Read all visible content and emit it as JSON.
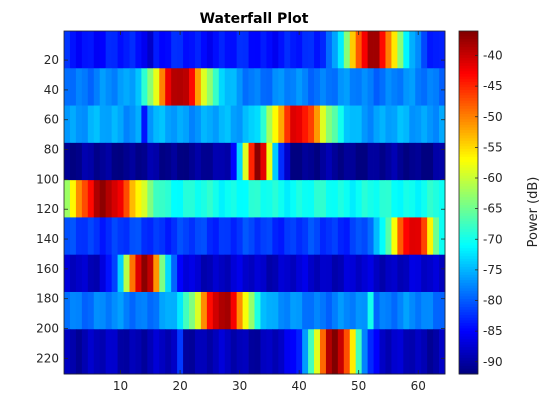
{
  "chart_data": {
    "type": "heatmap",
    "title": "Waterfall Plot",
    "xlabel": "",
    "ylabel": "",
    "xlim": [
      0.5,
      64.5
    ],
    "ylim": [
      0.5,
      230.5
    ],
    "y_reversed": true,
    "x_ticks": [
      10,
      20,
      30,
      40,
      50,
      60
    ],
    "x_tick_labels": [
      "10",
      "20",
      "30",
      "40",
      "50",
      "60"
    ],
    "y_ticks": [
      20,
      40,
      60,
      80,
      100,
      120,
      140,
      160,
      180,
      200,
      220
    ],
    "y_tick_labels": [
      "20",
      "40",
      "60",
      "80",
      "100",
      "120",
      "140",
      "160",
      "180",
      "200",
      "220"
    ],
    "colormap": "jet",
    "colorbar": {
      "label": "Power (dB)",
      "clim": [
        -92,
        -36
      ],
      "ticks": [
        -40,
        -45,
        -50,
        -55,
        -60,
        -65,
        -70,
        -75,
        -80,
        -85,
        -90
      ],
      "tick_labels": [
        "-40",
        "-45",
        "-50",
        "-55",
        "-60",
        "-65",
        "-70",
        "-75",
        "-80",
        "-85",
        "-90"
      ]
    },
    "columns": 64,
    "bands": [
      {
        "y_start": 1,
        "y_end": 25,
        "base_db": -84,
        "peak_bin": 52.5,
        "peak_db": -38,
        "width_bins": 3.5,
        "notch_bins": [
          15
        ],
        "notch_db": -88
      },
      {
        "y_start": 26,
        "y_end": 50,
        "base_db": -78,
        "peak_bin": 20,
        "peak_db": -38,
        "width_bins": 3.5,
        "notch_bins": [],
        "notch_db": -80
      },
      {
        "y_start": 51,
        "y_end": 75,
        "base_db": -76,
        "peak_bin": 40,
        "peak_db": -41,
        "width_bins": 3.5,
        "notch_bins": [
          14
        ],
        "notch_db": -84
      },
      {
        "y_start": 76,
        "y_end": 100,
        "base_db": -91,
        "peak_bin": 33,
        "peak_db": -37,
        "width_bins": 2,
        "notch_bins": [],
        "notch_db": -90
      },
      {
        "y_start": 101,
        "y_end": 125,
        "base_db": -70,
        "peak_bin": 7.5,
        "peak_db": -37,
        "width_bins": 4,
        "notch_bins": [],
        "notch_db": -72
      },
      {
        "y_start": 126,
        "y_end": 150,
        "base_db": -82,
        "peak_bin": 59,
        "peak_db": -40,
        "width_bins": 3,
        "notch_bins": [],
        "notch_db": -86
      },
      {
        "y_start": 151,
        "y_end": 175,
        "base_db": -88,
        "peak_bin": 14,
        "peak_db": -36,
        "width_bins": 2.5,
        "notch_bins": [],
        "notch_db": -90
      },
      {
        "y_start": 176,
        "y_end": 200,
        "base_db": -78,
        "peak_bin": 27,
        "peak_db": -38,
        "width_bins": 3.5,
        "notch_bins": [
          52
        ],
        "notch_db": -70
      },
      {
        "y_start": 201,
        "y_end": 230,
        "base_db": -89,
        "peak_bin": 46,
        "peak_db": -37,
        "width_bins": 3,
        "notch_bins": [
          20
        ],
        "notch_db": -82
      }
    ]
  }
}
